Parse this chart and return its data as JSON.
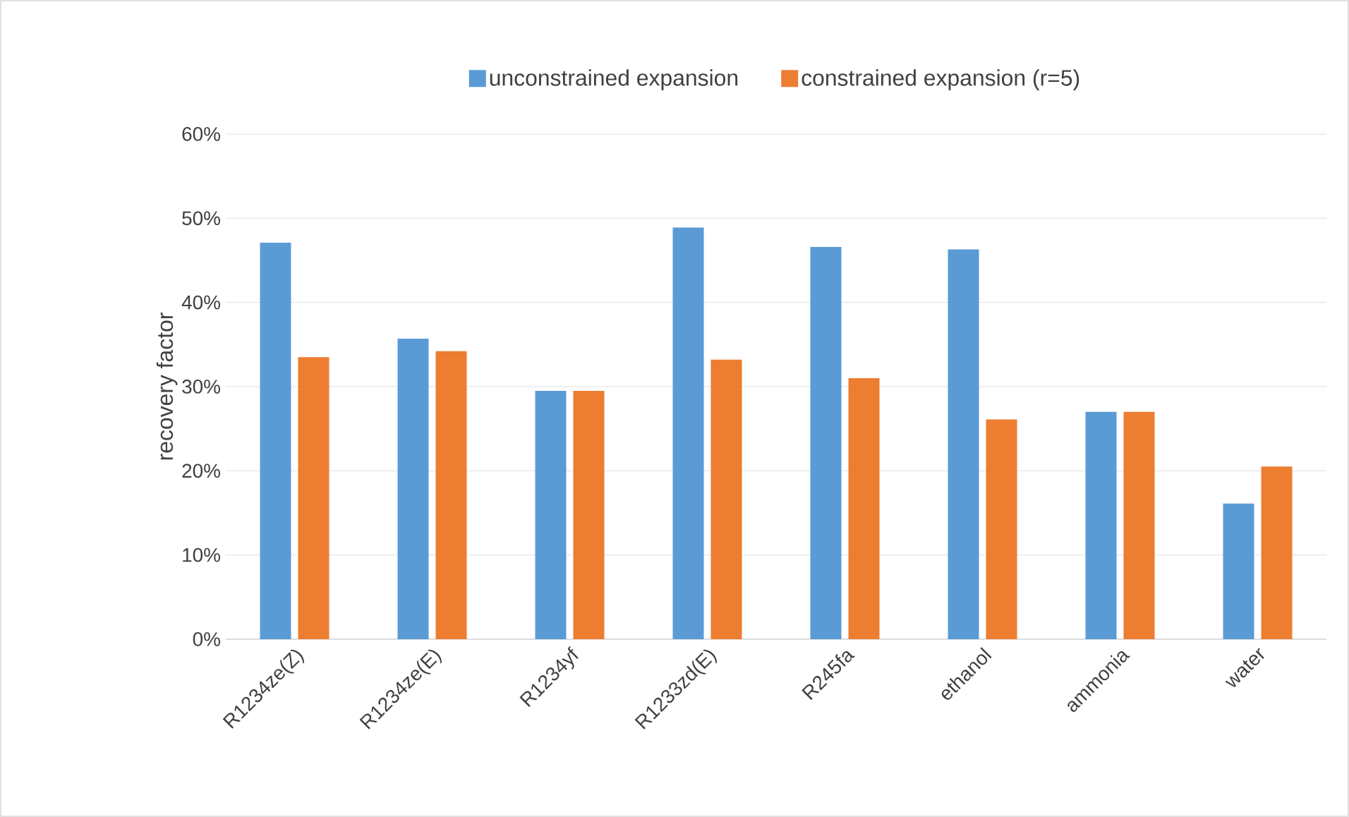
{
  "chart_data": {
    "type": "bar",
    "ylabel": "recovery factor",
    "categories": [
      "R1234ze(Z)",
      "R1234ze(E)",
      "R1234yf",
      "R1233zd(E)",
      "R245fa",
      "ethanol",
      "ammonia",
      "water"
    ],
    "series": [
      {
        "name": "unconstrained expansion",
        "color": "#5b9bd5",
        "values": [
          47.1,
          35.7,
          29.5,
          48.9,
          46.6,
          46.3,
          27.0,
          16.1
        ]
      },
      {
        "name": "constrained expansion (r=5)",
        "color": "#ed7d31",
        "values": [
          33.5,
          34.2,
          29.5,
          33.2,
          31.0,
          26.1,
          27.0,
          20.5
        ]
      }
    ],
    "ylim": [
      0,
      60
    ],
    "yticks": [
      {
        "value": 0,
        "label": "0%"
      },
      {
        "value": 10,
        "label": "10%"
      },
      {
        "value": 20,
        "label": "20%"
      },
      {
        "value": 30,
        "label": "30%"
      },
      {
        "value": 40,
        "label": "40%"
      },
      {
        "value": 50,
        "label": "50%"
      },
      {
        "value": 60,
        "label": "60%"
      }
    ],
    "grid": "y",
    "legend": "top"
  }
}
